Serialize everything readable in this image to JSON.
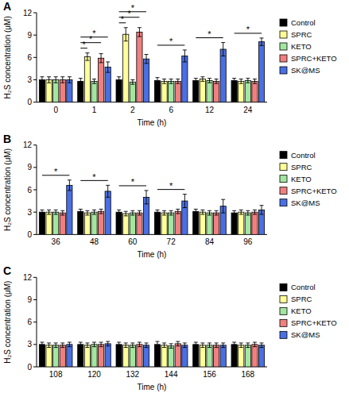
{
  "chart_data": [
    {
      "type": "bar",
      "title": "A",
      "x_label": "Time (h)",
      "y_label": "H₂S concentration (μM)",
      "categories": [
        "0",
        "1",
        "2",
        "6",
        "12",
        "24"
      ],
      "ylim": [
        0,
        12
      ],
      "yticks": [
        0,
        3,
        6,
        9,
        12
      ],
      "legend": "right",
      "series": [
        {
          "name": "Control",
          "color": "#000000",
          "values": [
            3.0,
            2.8,
            3.0,
            2.9,
            2.9,
            2.9
          ],
          "errors": [
            0.4,
            0.4,
            0.4,
            0.4,
            0.3,
            0.3
          ]
        },
        {
          "name": "SPRC",
          "color": "#ffff99",
          "values": [
            3.0,
            6.1,
            9.1,
            2.8,
            3.1,
            2.8
          ],
          "errors": [
            0.4,
            0.5,
            0.9,
            0.3,
            0.3,
            0.3
          ]
        },
        {
          "name": "KETO",
          "color": "#a3e6a0",
          "values": [
            3.0,
            2.8,
            2.7,
            2.8,
            2.9,
            2.9
          ],
          "errors": [
            0.4,
            0.3,
            0.3,
            0.3,
            0.3,
            0.3
          ]
        },
        {
          "name": "SPRC+KETO",
          "color": "#f08080",
          "values": [
            3.0,
            5.9,
            9.4,
            2.8,
            2.8,
            2.8
          ],
          "errors": [
            0.4,
            0.6,
            0.6,
            0.3,
            0.3,
            0.3
          ]
        },
        {
          "name": "SK@MS",
          "color": "#4a6fe3",
          "values": [
            3.0,
            4.7,
            5.8,
            6.2,
            7.1,
            8.1
          ],
          "errors": [
            0.4,
            0.7,
            0.6,
            0.8,
            0.9,
            0.5
          ]
        }
      ],
      "annotations": [
        {
          "text": "*",
          "category": "1",
          "from": "Control",
          "to": "SPRC"
        },
        {
          "text": "*",
          "category": "1",
          "from": "Control",
          "to": "SPRC+KETO"
        },
        {
          "text": "*",
          "category": "1",
          "from": "Control",
          "to": "SK@MS"
        },
        {
          "text": "*",
          "category": "2",
          "from": "Control",
          "to": "SPRC"
        },
        {
          "text": "*",
          "category": "2",
          "from": "Control",
          "to": "SPRC+KETO"
        },
        {
          "text": "*",
          "category": "2",
          "from": "Control",
          "to": "SK@MS"
        },
        {
          "text": "*",
          "category": "6",
          "from": "Control",
          "to": "SK@MS"
        },
        {
          "text": "*",
          "category": "12",
          "from": "Control",
          "to": "SK@MS"
        },
        {
          "text": "*",
          "category": "24",
          "from": "Control",
          "to": "SK@MS"
        }
      ]
    },
    {
      "type": "bar",
      "title": "B",
      "x_label": "Time (h)",
      "y_label": "H₂S concentration (μM)",
      "categories": [
        "36",
        "48",
        "60",
        "72",
        "84",
        "96"
      ],
      "ylim": [
        0,
        12
      ],
      "yticks": [
        0,
        3,
        6,
        9,
        12
      ],
      "legend": "right",
      "series": [
        {
          "name": "Control",
          "color": "#000000",
          "values": [
            3.0,
            3.1,
            3.0,
            3.0,
            3.1,
            2.9
          ],
          "errors": [
            0.3,
            0.3,
            0.3,
            0.3,
            0.3,
            0.3
          ]
        },
        {
          "name": "SPRC",
          "color": "#ffff99",
          "values": [
            3.0,
            2.9,
            2.8,
            2.9,
            3.0,
            3.0
          ],
          "errors": [
            0.3,
            0.3,
            0.3,
            0.3,
            0.3,
            0.3
          ]
        },
        {
          "name": "KETO",
          "color": "#a3e6a0",
          "values": [
            3.0,
            3.0,
            2.9,
            2.9,
            2.9,
            2.9
          ],
          "errors": [
            0.3,
            0.3,
            0.3,
            0.3,
            0.3,
            0.3
          ]
        },
        {
          "name": "SPRC+KETO",
          "color": "#f08080",
          "values": [
            2.9,
            3.1,
            2.9,
            3.1,
            2.9,
            3.0
          ],
          "errors": [
            0.3,
            0.3,
            0.3,
            0.3,
            0.3,
            0.3
          ]
        },
        {
          "name": "SK@MS",
          "color": "#4a6fe3",
          "values": [
            6.6,
            5.8,
            5.0,
            4.5,
            3.8,
            3.3
          ],
          "errors": [
            0.7,
            0.8,
            0.9,
            0.9,
            0.9,
            0.6
          ]
        }
      ],
      "annotations": [
        {
          "text": "*",
          "category": "36",
          "from": "Control",
          "to": "SK@MS"
        },
        {
          "text": "*",
          "category": "48",
          "from": "Control",
          "to": "SK@MS"
        },
        {
          "text": "*",
          "category": "60",
          "from": "Control",
          "to": "SK@MS"
        },
        {
          "text": "*",
          "category": "72",
          "from": "Control",
          "to": "SK@MS"
        }
      ]
    },
    {
      "type": "bar",
      "title": "C",
      "x_label": "Time (h)",
      "y_label": "H₂S concentration (μM)",
      "categories": [
        "108",
        "120",
        "132",
        "144",
        "156",
        "168"
      ],
      "ylim": [
        0,
        12
      ],
      "yticks": [
        0,
        3,
        6,
        9,
        12
      ],
      "legend": "right",
      "series": [
        {
          "name": "Control",
          "color": "#000000",
          "values": [
            3.0,
            3.0,
            3.0,
            3.0,
            3.0,
            3.0
          ],
          "errors": [
            0.3,
            0.3,
            0.3,
            0.4,
            0.3,
            0.3
          ]
        },
        {
          "name": "SPRC",
          "color": "#ffff99",
          "values": [
            2.9,
            2.9,
            2.9,
            2.9,
            2.9,
            2.9
          ],
          "errors": [
            0.3,
            0.3,
            0.3,
            0.3,
            0.3,
            0.3
          ]
        },
        {
          "name": "KETO",
          "color": "#a3e6a0",
          "values": [
            2.9,
            3.0,
            2.9,
            2.8,
            2.9,
            2.9
          ],
          "errors": [
            0.3,
            0.3,
            0.3,
            0.3,
            0.3,
            0.3
          ]
        },
        {
          "name": "SPRC+KETO",
          "color": "#f08080",
          "values": [
            2.9,
            3.0,
            3.0,
            3.1,
            2.9,
            3.0
          ],
          "errors": [
            0.3,
            0.3,
            0.3,
            0.3,
            0.3,
            0.3
          ]
        },
        {
          "name": "SK@MS",
          "color": "#4a6fe3",
          "values": [
            3.0,
            3.1,
            2.9,
            2.9,
            2.9,
            2.9
          ],
          "errors": [
            0.3,
            0.3,
            0.3,
            0.3,
            0.3,
            0.3
          ]
        }
      ]
    }
  ]
}
